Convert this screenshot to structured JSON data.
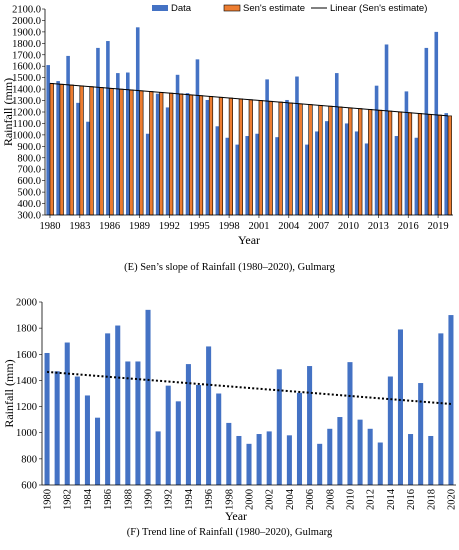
{
  "captions": {
    "top": "(E) Sen’s slope of Rainfall (1980–2020), Gulmarg",
    "bottom": "(F) Trend line of Rainfall (1980–2020), Gulmarg"
  },
  "chart_data": [
    {
      "type": "bar",
      "xlabel": "Year",
      "ylabel": "Rainfall (mm)",
      "ylim": [
        300,
        2100
      ],
      "ytick_step": 100,
      "ytick_format": "0.0",
      "xtick_labels": [
        "1980",
        "1983",
        "1986",
        "1989",
        "1992",
        "1995",
        "1998",
        "2001",
        "2004",
        "2007",
        "2010",
        "2013",
        "2016",
        "2019"
      ],
      "legend": {
        "position": "top",
        "entries": [
          "Data",
          "Sen's estimate",
          "Linear (Sen's estimate)"
        ]
      },
      "grid": false,
      "categories": [
        "1980",
        "1981",
        "1982",
        "1983",
        "1984",
        "1985",
        "1986",
        "1987",
        "1988",
        "1989",
        "1990",
        "1991",
        "1992",
        "1993",
        "1994",
        "1995",
        "1996",
        "1997",
        "1998",
        "1999",
        "2000",
        "2001",
        "2002",
        "2003",
        "2004",
        "2005",
        "2006",
        "2007",
        "2008",
        "2009",
        "2010",
        "2011",
        "2012",
        "2013",
        "2014",
        "2015",
        "2016",
        "2017",
        "2018",
        "2019",
        "2020"
      ],
      "series": [
        {
          "name": "Data",
          "color": "#4472C4",
          "values": [
            1610,
            1470,
            1690,
            1280,
            1115,
            1760,
            1820,
            1540,
            1545,
            1940,
            1010,
            1360,
            1240,
            1525,
            1365,
            1660,
            1305,
            1075,
            975,
            915,
            990,
            1010,
            1485,
            980,
            1305,
            1510,
            915,
            1030,
            1120,
            1540,
            1100,
            1030,
            925,
            1430,
            1790,
            990,
            1380,
            975,
            1760,
            1900,
            1190
          ]
        },
        {
          "name": "Sen's estimate",
          "color": "#ED7D31",
          "values": [
            1450,
            1443,
            1436,
            1429,
            1422,
            1414,
            1407,
            1400,
            1393,
            1386,
            1379,
            1372,
            1365,
            1358,
            1350,
            1343,
            1336,
            1329,
            1322,
            1315,
            1308,
            1301,
            1294,
            1287,
            1279,
            1272,
            1265,
            1258,
            1251,
            1244,
            1237,
            1230,
            1223,
            1216,
            1208,
            1201,
            1194,
            1187,
            1180,
            1173,
            1166
          ]
        }
      ],
      "trendline": {
        "name": "Linear (Sen's estimate)",
        "start": 1450,
        "end": 1166,
        "style": "solid"
      }
    },
    {
      "type": "bar",
      "xlabel": "Year",
      "ylabel": "Rainfall (mm)",
      "ylim": [
        600,
        2000
      ],
      "ytick_step": 200,
      "grid": false,
      "categories": [
        "1980",
        "1981",
        "1982",
        "1983",
        "1984",
        "1985",
        "1986",
        "1987",
        "1988",
        "1989",
        "1990",
        "1991",
        "1992",
        "1993",
        "1994",
        "1995",
        "1996",
        "1997",
        "1998",
        "1999",
        "2000",
        "2001",
        "2002",
        "2003",
        "2004",
        "2005",
        "2006",
        "2007",
        "2008",
        "2009",
        "2010",
        "2011",
        "2012",
        "2013",
        "2014",
        "2015",
        "2016",
        "2017",
        "2018",
        "2019",
        "2020"
      ],
      "xtick_labels": [
        "1980",
        "1982",
        "1984",
        "1986",
        "1988",
        "1990",
        "1992",
        "1994",
        "1996",
        "1998",
        "2000",
        "2002",
        "2004",
        "2006",
        "2008",
        "2010",
        "2012",
        "2014",
        "2016",
        "2018",
        "2020"
      ],
      "series": [
        {
          "color": "#4472C4",
          "values": [
            1610,
            1470,
            1690,
            1430,
            1285,
            1115,
            1760,
            1820,
            1545,
            1545,
            1940,
            1010,
            1360,
            1240,
            1525,
            1365,
            1660,
            1300,
            1075,
            975,
            915,
            990,
            1010,
            1485,
            980,
            1305,
            1510,
            915,
            1030,
            1120,
            1540,
            1100,
            1030,
            925,
            1430,
            1790,
            990,
            1380,
            975,
            1760,
            1900
          ]
        }
      ],
      "trendline": {
        "start": 1465,
        "end": 1220,
        "style": "dotted"
      }
    }
  ]
}
